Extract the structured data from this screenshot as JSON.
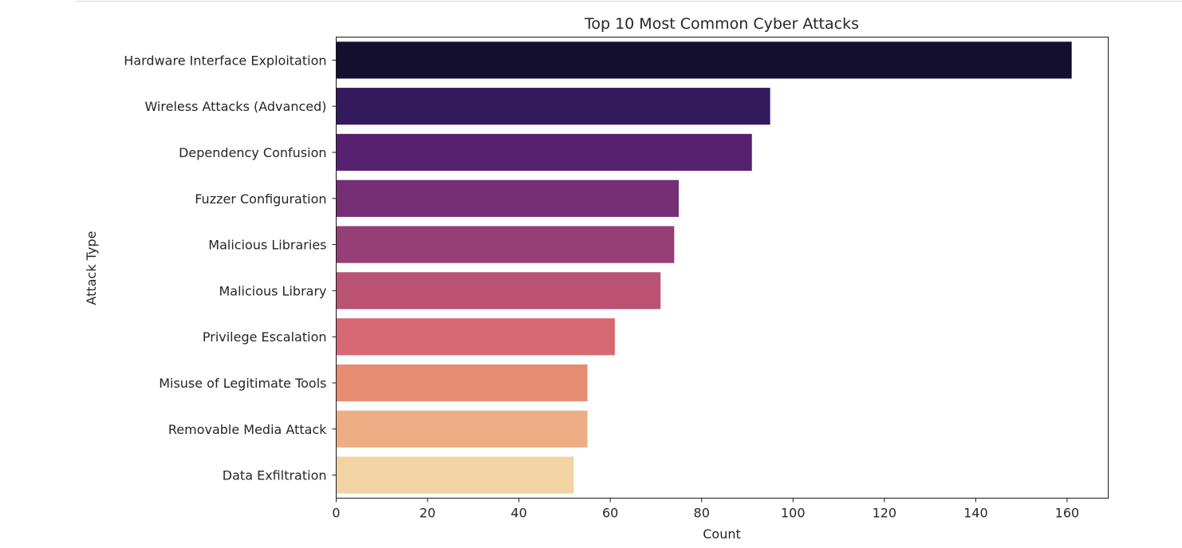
{
  "chart_data": {
    "type": "bar",
    "orientation": "horizontal",
    "title": "Top 10 Most Common Cyber Attacks",
    "xlabel": "Count",
    "ylabel": "Attack Type",
    "xlim": [
      0,
      169
    ],
    "xticks": [
      0,
      20,
      40,
      60,
      80,
      100,
      120,
      140,
      160
    ],
    "grid": false,
    "categories": [
      "Hardware Interface Exploitation",
      "Wireless Attacks (Advanced)",
      "Dependency Confusion",
      "Fuzzer Configuration",
      "Malicious Libraries",
      "Malicious Library",
      "Privilege Escalation",
      "Misuse of Legitimate Tools",
      "Removable Media Attack",
      "Data Exfiltration"
    ],
    "values": [
      161,
      95,
      91,
      75,
      74,
      71,
      61,
      55,
      55,
      52
    ],
    "colors": [
      "#150f2f",
      "#331a5d",
      "#572170",
      "#752f74",
      "#953f76",
      "#b95273",
      "#d76873",
      "#e68c71",
      "#edae86",
      "#f2d3a3"
    ],
    "palette": "magma"
  }
}
